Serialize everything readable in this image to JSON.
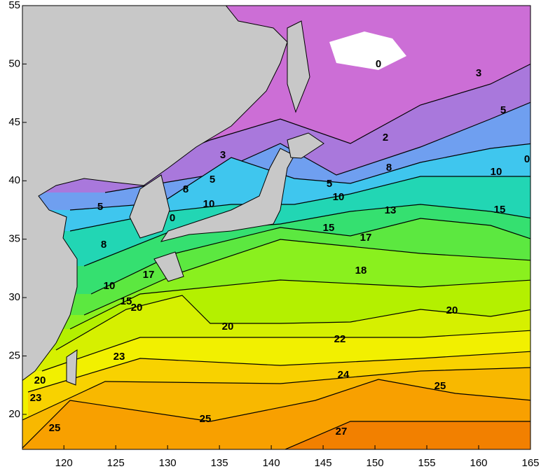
{
  "map": {
    "xlim": [
      116,
      165
    ],
    "ylim": [
      17,
      55
    ],
    "xticks": [
      120,
      125,
      130,
      135,
      140,
      145,
      150,
      155,
      160,
      165
    ],
    "yticks": [
      20,
      25,
      30,
      35,
      40,
      45,
      50,
      55
    ],
    "contour_labels": [
      0,
      3,
      5,
      2,
      0,
      3,
      5,
      8,
      10,
      5,
      8,
      10,
      10,
      0,
      5,
      13,
      15,
      15,
      17,
      8,
      18,
      17,
      10,
      15,
      20,
      20,
      20,
      22,
      23,
      24,
      25,
      20,
      23,
      25,
      25,
      27
    ]
  }
}
